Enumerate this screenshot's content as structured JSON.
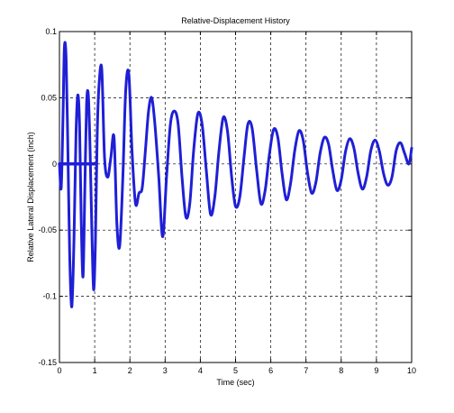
{
  "chart_data": {
    "type": "line",
    "title": "Relative-Displacement History",
    "xlabel": "Time (sec)",
    "ylabel": "Relative Lateral Displacement (inch)",
    "xlim": [
      0,
      10
    ],
    "ylim": [
      -0.15,
      0.1
    ],
    "xticks": [
      0,
      1,
      2,
      3,
      4,
      5,
      6,
      7,
      8,
      9,
      10
    ],
    "yticks": [
      -0.15,
      -0.1,
      -0.05,
      0,
      0.05,
      0.1
    ],
    "xtick_labels": [
      "0",
      "1",
      "2",
      "3",
      "4",
      "5",
      "6",
      "7",
      "8",
      "9",
      "10"
    ],
    "ytick_labels": [
      "-0.15",
      "-0.1",
      "-0.05",
      "0",
      "0.05",
      "0.1"
    ],
    "grid": true,
    "grid_style": "dashed",
    "line_color": "#1f1fd6",
    "series": [
      {
        "x": [
          0.0,
          0.05,
          0.1,
          0.14,
          0.19,
          0.24,
          0.29,
          0.35,
          0.41,
          0.47,
          0.52,
          0.57,
          0.62,
          0.67,
          0.72,
          0.77,
          0.82,
          0.87,
          0.92,
          0.97,
          1.02,
          1.07,
          1.12,
          1.2,
          1.28,
          1.37,
          1.46,
          1.55,
          1.63,
          1.71,
          1.8,
          1.88,
          1.97,
          2.06,
          2.16,
          2.26,
          2.35,
          2.44,
          2.53,
          2.62,
          2.71,
          2.82,
          2.93,
          3.04,
          3.15,
          3.26,
          3.37,
          3.48,
          3.59,
          3.7,
          3.81,
          3.93,
          4.05,
          4.17,
          4.29,
          4.41,
          4.53,
          4.65,
          4.77,
          4.89,
          5.0,
          5.12,
          5.24,
          5.35,
          5.47,
          5.6,
          5.72,
          5.84,
          5.96,
          6.08,
          6.2,
          6.32,
          6.44,
          6.56,
          6.68,
          6.8,
          6.92,
          7.04,
          7.16,
          7.28,
          7.4,
          7.52,
          7.64,
          7.76,
          7.88,
          8.0,
          8.12,
          8.24,
          8.36,
          8.48,
          8.6,
          8.72,
          8.84,
          8.96,
          9.08,
          9.2,
          9.32,
          9.44,
          9.56,
          9.68,
          9.8,
          9.92,
          10.0
        ],
        "y": [
          0.0,
          -0.018,
          0.035,
          0.088,
          0.079,
          0.01,
          -0.068,
          -0.108,
          -0.06,
          0.022,
          0.052,
          0.03,
          -0.045,
          -0.085,
          -0.02,
          0.045,
          0.052,
          0.01,
          -0.05,
          -0.095,
          -0.06,
          0.02,
          0.058,
          0.072,
          0.005,
          -0.01,
          0.005,
          0.02,
          -0.045,
          -0.062,
          -0.01,
          0.055,
          0.068,
          0.01,
          -0.03,
          -0.022,
          -0.018,
          0.01,
          0.04,
          0.05,
          0.03,
          -0.01,
          -0.055,
          -0.01,
          0.03,
          0.04,
          0.03,
          -0.01,
          -0.04,
          -0.03,
          0.01,
          0.038,
          0.03,
          -0.005,
          -0.038,
          -0.025,
          0.01,
          0.035,
          0.025,
          -0.01,
          -0.032,
          -0.025,
          0.005,
          0.03,
          0.027,
          -0.005,
          -0.03,
          -0.02,
          0.007,
          0.026,
          0.02,
          -0.007,
          -0.027,
          -0.015,
          0.01,
          0.025,
          0.018,
          -0.006,
          -0.022,
          -0.014,
          0.008,
          0.02,
          0.015,
          -0.005,
          -0.02,
          -0.012,
          0.009,
          0.019,
          0.012,
          -0.007,
          -0.019,
          -0.01,
          0.01,
          0.018,
          0.01,
          -0.007,
          -0.016,
          -0.01,
          0.01,
          0.016,
          0.008,
          0.0,
          0.012
        ]
      }
    ],
    "baseline_segment": {
      "x": [
        0.0,
        1.05
      ],
      "y": [
        0.0,
        0.0
      ]
    }
  }
}
